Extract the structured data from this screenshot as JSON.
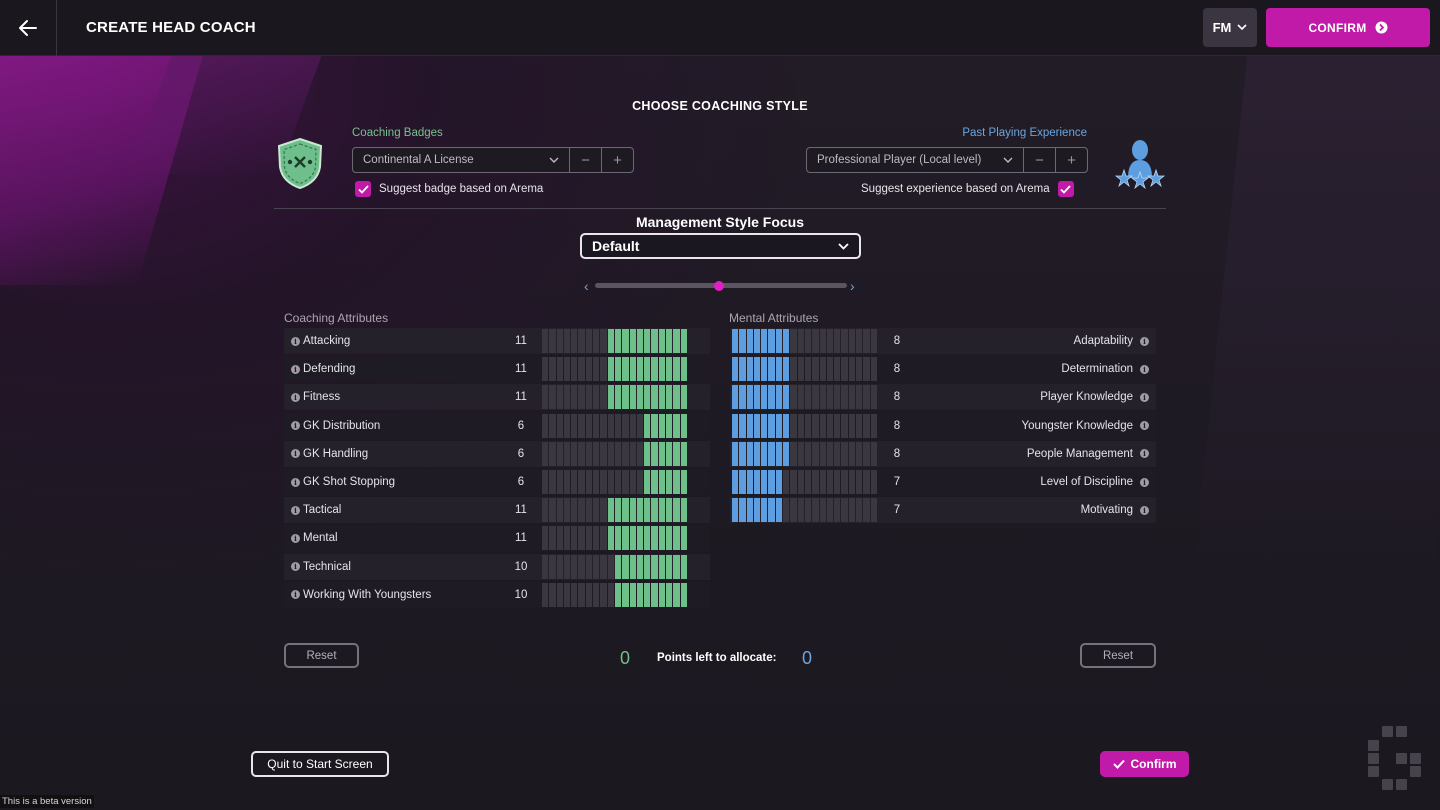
{
  "header": {
    "title": "CREATE HEAD COACH",
    "fm_label": "FM",
    "confirm_label": "CONFIRM"
  },
  "coaching_style": {
    "title": "CHOOSE COACHING STYLE",
    "badges": {
      "label": "Coaching Badges",
      "value": "Continental A License",
      "suggest_label": "Suggest badge based on Arema",
      "suggest_checked": true
    },
    "experience": {
      "label": "Past Playing Experience",
      "value": "Professional Player (Local level)",
      "suggest_label": "Suggest experience based on Arema",
      "suggest_checked": true
    }
  },
  "management": {
    "label": "Management Style Focus",
    "value": "Default",
    "slider_position": 0.5
  },
  "coaching_attributes": {
    "title": "Coaching Attributes",
    "max": 20,
    "color": "#6dc08a",
    "items": [
      {
        "name": "Attacking",
        "value": 11
      },
      {
        "name": "Defending",
        "value": 11
      },
      {
        "name": "Fitness",
        "value": 11
      },
      {
        "name": "GK Distribution",
        "value": 6
      },
      {
        "name": "GK Handling",
        "value": 6
      },
      {
        "name": "GK Shot Stopping",
        "value": 6
      },
      {
        "name": "Tactical",
        "value": 11
      },
      {
        "name": "Mental",
        "value": 11
      },
      {
        "name": "Technical",
        "value": 10
      },
      {
        "name": "Working With Youngsters",
        "value": 10
      }
    ]
  },
  "mental_attributes": {
    "title": "Mental Attributes",
    "max": 20,
    "color": "#5c9ee0",
    "items": [
      {
        "name": "Adaptability",
        "value": 8
      },
      {
        "name": "Determination",
        "value": 8
      },
      {
        "name": "Player Knowledge",
        "value": 8
      },
      {
        "name": "Youngster Knowledge",
        "value": 8
      },
      {
        "name": "People Management",
        "value": 8
      },
      {
        "name": "Level of Discipline",
        "value": 7
      },
      {
        "name": "Motivating",
        "value": 7
      }
    ]
  },
  "footer": {
    "reset_label": "Reset",
    "points_left_coaching": "0",
    "points_label": "Points left to allocate:",
    "points_left_mental": "0",
    "quit_label": "Quit to Start Screen",
    "confirm_label": "Confirm",
    "beta_label": "This is a beta version"
  }
}
